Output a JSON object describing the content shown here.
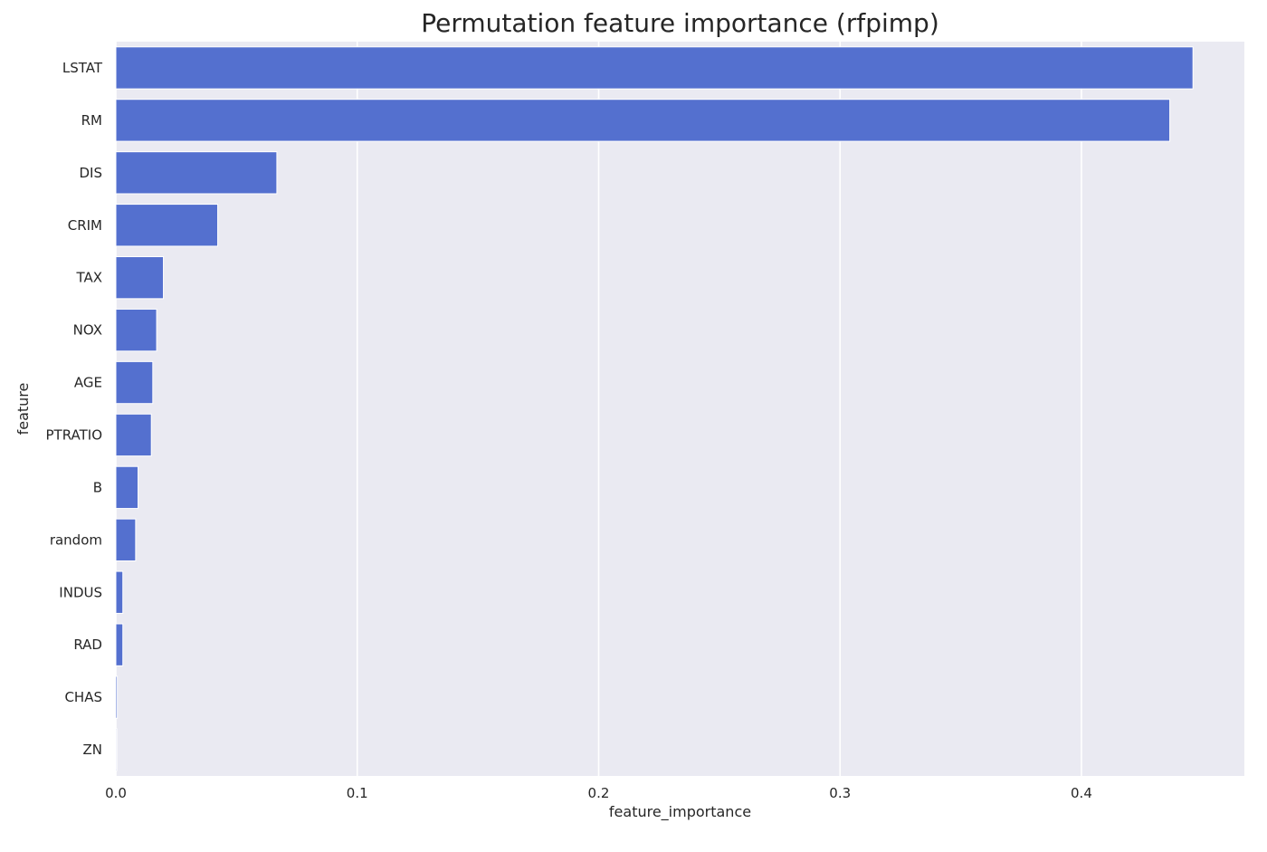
{
  "chart_data": {
    "type": "bar",
    "orientation": "horizontal",
    "title": "Permutation feature importance (rfpimp)",
    "xlabel": "feature_importance",
    "ylabel": "feature",
    "xlim": [
      0,
      0.4675
    ],
    "xticks": [
      0.0,
      0.1,
      0.2,
      0.3,
      0.4
    ],
    "xtick_labels": [
      "0.0",
      "0.1",
      "0.2",
      "0.3",
      "0.4"
    ],
    "grid": true,
    "categories": [
      "LSTAT",
      "RM",
      "DIS",
      "CRIM",
      "TAX",
      "NOX",
      "AGE",
      "PTRATIO",
      "B",
      "random",
      "INDUS",
      "RAD",
      "CHAS",
      "ZN"
    ],
    "values": [
      0.4462,
      0.4366,
      0.0667,
      0.0422,
      0.0197,
      0.0169,
      0.0153,
      0.0147,
      0.0092,
      0.0082,
      0.0029,
      0.0029,
      0.0006,
      0.0004
    ],
    "bar_color": "#5470cf",
    "background_color": "#eaeaf2",
    "grid_color": "#ffffff"
  }
}
